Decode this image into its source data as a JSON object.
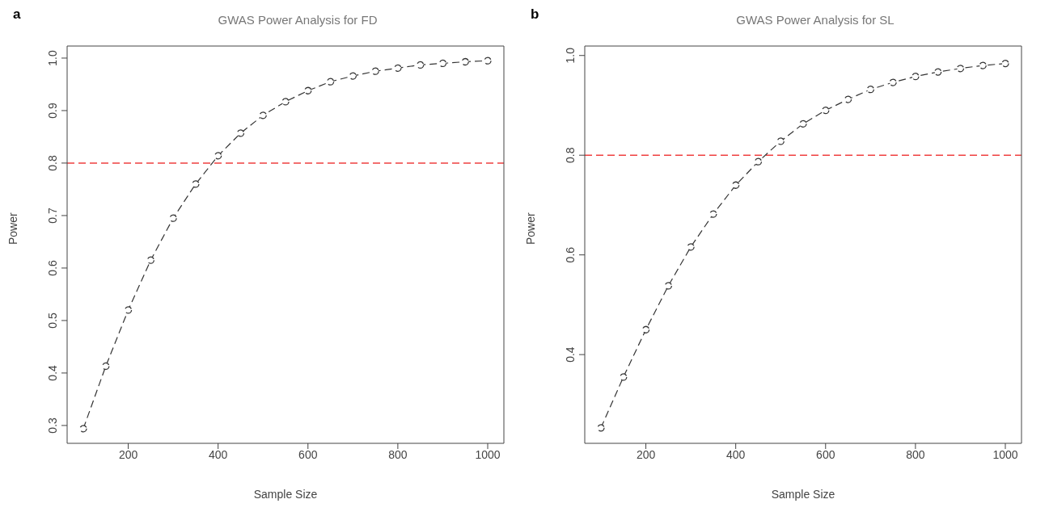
{
  "chart_data": [
    {
      "type": "line",
      "title": "GWAS Power Analysis for FD",
      "xlabel": "Sample Size",
      "ylabel": "Power",
      "annotations": [
        "a"
      ],
      "x": [
        100,
        150,
        200,
        250,
        300,
        350,
        400,
        450,
        500,
        550,
        600,
        650,
        700,
        750,
        800,
        850,
        900,
        950,
        1000
      ],
      "series": [
        {
          "color": "#333333",
          "values": [
            0.294,
            0.413,
            0.52,
            0.615,
            0.695,
            0.76,
            0.814,
            0.857,
            0.891,
            0.917,
            0.938,
            0.955,
            0.966,
            0.975,
            0.981,
            0.987,
            0.99,
            0.993,
            0.995
          ]
        }
      ],
      "xlim": [
        64,
        1036
      ],
      "xticks": [
        200,
        400,
        600,
        800,
        1000
      ],
      "ylim": [
        0.266,
        1.023
      ],
      "yticks": [
        0.3,
        0.4,
        0.5,
        0.6,
        0.7,
        0.8,
        0.9,
        {
          "value": 1,
          "label": "1.0"
        }
      ],
      "ref_lines": [
        {
          "axis": "y",
          "value": 0.8,
          "color": "#f04040",
          "line_style": "dashed"
        }
      ],
      "marker": "circle",
      "line_style": "dashed",
      "grid": false,
      "legend": false
    },
    {
      "type": "line",
      "title": "GWAS Power Analysis for SL",
      "xlabel": "Sample Size",
      "ylabel": "Power",
      "annotations": [
        "b"
      ],
      "x": [
        100,
        150,
        200,
        250,
        300,
        350,
        400,
        450,
        500,
        550,
        600,
        650,
        700,
        750,
        800,
        850,
        900,
        950,
        1000
      ],
      "series": [
        {
          "color": "#333333",
          "values": [
            0.253,
            0.355,
            0.45,
            0.538,
            0.616,
            0.682,
            0.74,
            0.787,
            0.828,
            0.863,
            0.89,
            0.912,
            0.932,
            0.946,
            0.958,
            0.967,
            0.974,
            0.98,
            0.984
          ]
        }
      ],
      "xlim": [
        64,
        1036
      ],
      "xticks": [
        200,
        400,
        600,
        800,
        1000
      ],
      "ylim": [
        0.222,
        1.019
      ],
      "yticks": [
        0.4,
        0.6,
        0.8,
        {
          "value": 1,
          "label": "1.0"
        }
      ],
      "ref_lines": [
        {
          "axis": "y",
          "value": 0.8,
          "color": "#f04040",
          "line_style": "dashed"
        }
      ],
      "marker": "circle",
      "line_style": "dashed",
      "grid": false,
      "legend": false
    }
  ]
}
